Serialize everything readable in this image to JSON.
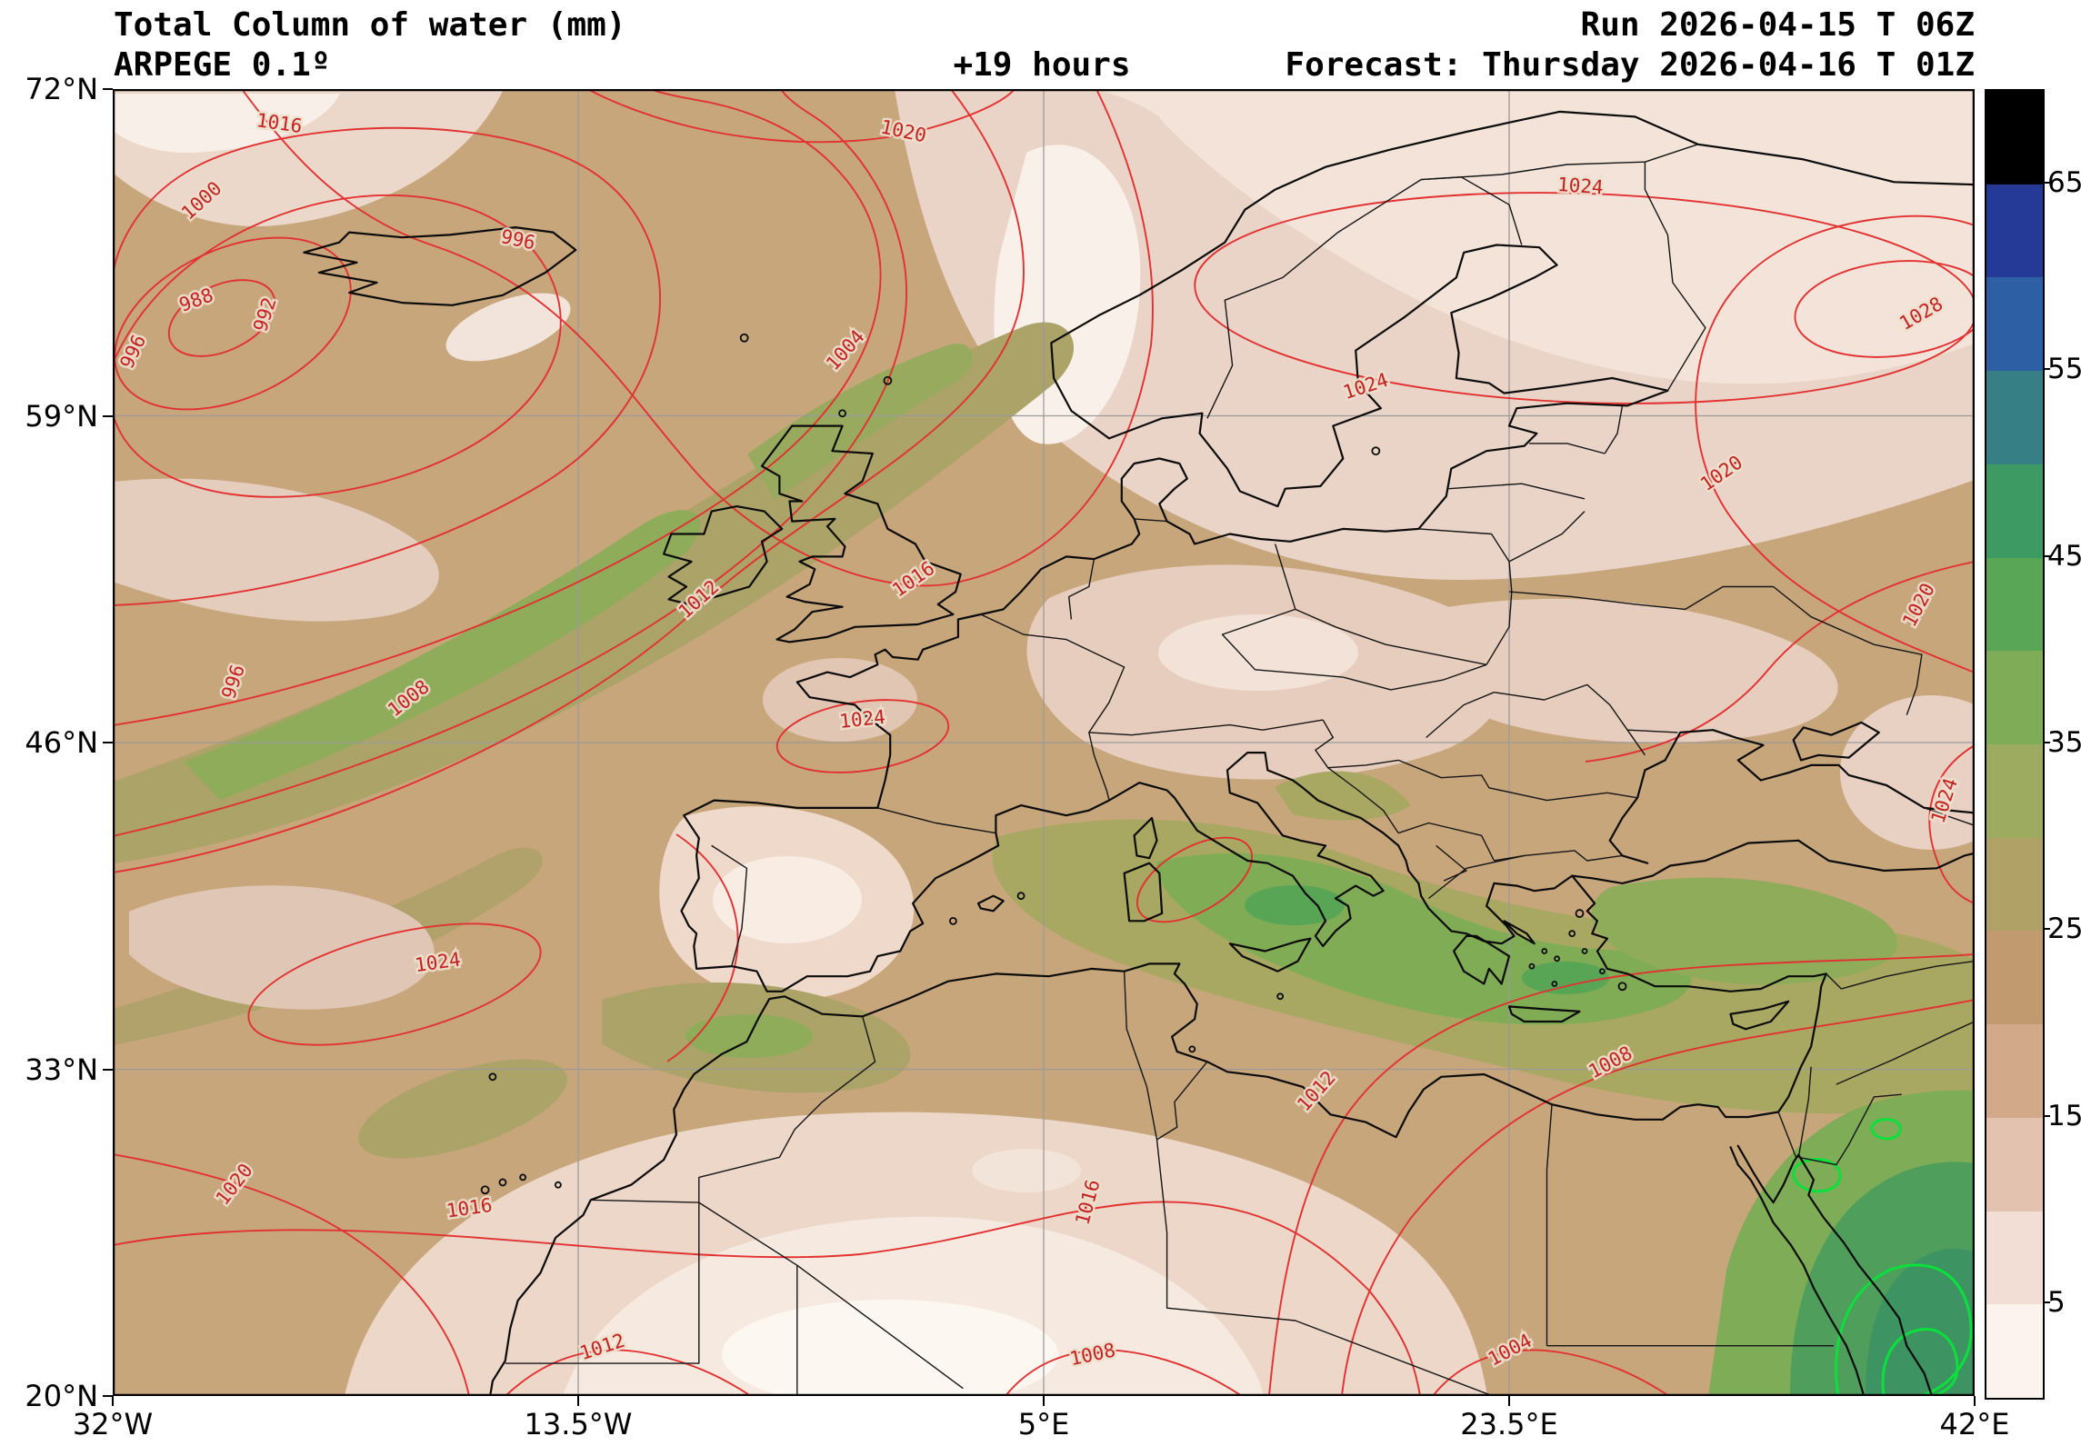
{
  "header": {
    "title": "Total Column of water (mm)",
    "model": "ARPEGE 0.1º",
    "lead_time": "+19 hours",
    "run": "Run 2026-04-15 T 06Z",
    "forecast": "Forecast: Thursday 2026-04-16 T 01Z"
  },
  "axes": {
    "lat_ticks": [
      {
        "label": "72°N",
        "value": 72
      },
      {
        "label": "59°N",
        "value": 59
      },
      {
        "label": "46°N",
        "value": 46
      },
      {
        "label": "33°N",
        "value": 33
      },
      {
        "label": "20°N",
        "value": 20
      }
    ],
    "lon_ticks": [
      {
        "label": "32°W",
        "value": -32
      },
      {
        "label": "13.5°W",
        "value": -13.5
      },
      {
        "label": "5°E",
        "value": 5
      },
      {
        "label": "23.5°E",
        "value": 23.5
      },
      {
        "label": "42°E",
        "value": 42
      }
    ]
  },
  "colorbar": {
    "min": 0,
    "max": 70,
    "tick_values": [
      65,
      55,
      45,
      35,
      25,
      15,
      5
    ],
    "colors_bottom_to_top": [
      "#fdf3ee",
      "#f3ded6",
      "#e3c2b0",
      "#d2aa8a",
      "#c29a70",
      "#b0a266",
      "#9cab5f",
      "#7fad57",
      "#58a656",
      "#3d9a62",
      "#357f85",
      "#2d5fa5",
      "#253a96",
      "#000000"
    ]
  },
  "chart_data": {
    "type": "heatmap",
    "title": "Total Column of water (mm)",
    "model": "ARPEGE 0.1º",
    "run": "Run 2026-04-15 T 06Z",
    "forecast_valid": "Forecast: Thursday 2026-04-16 T 01Z",
    "lead_time": "+19 hours",
    "variable": "total column water",
    "units": "mm",
    "lon_range": [
      -32,
      42
    ],
    "lat_range": [
      20,
      72
    ],
    "fill_levels_mm": [
      0,
      5,
      10,
      15,
      20,
      25,
      30,
      35,
      40,
      45,
      50,
      55,
      60,
      65,
      70
    ],
    "overlay_contours": {
      "color": "#e23131",
      "values_shown": [
        988,
        992,
        996,
        1000,
        1004,
        1008,
        1012,
        1016,
        1020,
        1024,
        1028
      ]
    },
    "highlight_contour_color": "#0be03c",
    "pressure_labels": [
      {
        "text": "1016",
        "x": 0.089,
        "y": 0.031,
        "rot": 8
      },
      {
        "text": "1020",
        "x": 0.424,
        "y": 0.037,
        "rot": 12
      },
      {
        "text": "1000",
        "x": 0.05,
        "y": 0.089,
        "rot": -42
      },
      {
        "text": "996",
        "x": 0.217,
        "y": 0.12,
        "rot": 12
      },
      {
        "text": "988",
        "x": 0.046,
        "y": 0.166,
        "rot": -20
      },
      {
        "text": "992",
        "x": 0.085,
        "y": 0.174,
        "rot": -72
      },
      {
        "text": "996",
        "x": 0.014,
        "y": 0.203,
        "rot": -65
      },
      {
        "text": "1004",
        "x": 0.396,
        "y": 0.203,
        "rot": -48
      },
      {
        "text": "1024",
        "x": 0.788,
        "y": 0.079,
        "rot": 4
      },
      {
        "text": "1028",
        "x": 0.973,
        "y": 0.176,
        "rot": -30
      },
      {
        "text": "1024",
        "x": 0.674,
        "y": 0.232,
        "rot": -18
      },
      {
        "text": "1020",
        "x": 0.866,
        "y": 0.298,
        "rot": -35
      },
      {
        "text": "1016",
        "x": 0.432,
        "y": 0.379,
        "rot": -35
      },
      {
        "text": "1012",
        "x": 0.317,
        "y": 0.394,
        "rot": -42
      },
      {
        "text": "1020",
        "x": 0.973,
        "y": 0.397,
        "rot": -62
      },
      {
        "text": "996",
        "x": 0.068,
        "y": 0.455,
        "rot": -72
      },
      {
        "text": "1008",
        "x": 0.161,
        "y": 0.47,
        "rot": -38
      },
      {
        "text": "1024",
        "x": 0.403,
        "y": 0.487,
        "rot": -6
      },
      {
        "text": "1024",
        "x": 0.987,
        "y": 0.546,
        "rot": -72
      },
      {
        "text": "1024",
        "x": 0.175,
        "y": 0.673,
        "rot": -8
      },
      {
        "text": "1008",
        "x": 0.806,
        "y": 0.749,
        "rot": -28
      },
      {
        "text": "1012",
        "x": 0.649,
        "y": 0.77,
        "rot": -48
      },
      {
        "text": "1020",
        "x": 0.068,
        "y": 0.841,
        "rot": -52
      },
      {
        "text": "1016",
        "x": 0.192,
        "y": 0.861,
        "rot": -8
      },
      {
        "text": "1016",
        "x": 0.527,
        "y": 0.853,
        "rot": -75
      },
      {
        "text": "1012",
        "x": 0.264,
        "y": 0.967,
        "rot": -18
      },
      {
        "text": "1008",
        "x": 0.527,
        "y": 0.973,
        "rot": -12
      },
      {
        "text": "1004",
        "x": 0.752,
        "y": 0.969,
        "rot": -28
      }
    ]
  }
}
